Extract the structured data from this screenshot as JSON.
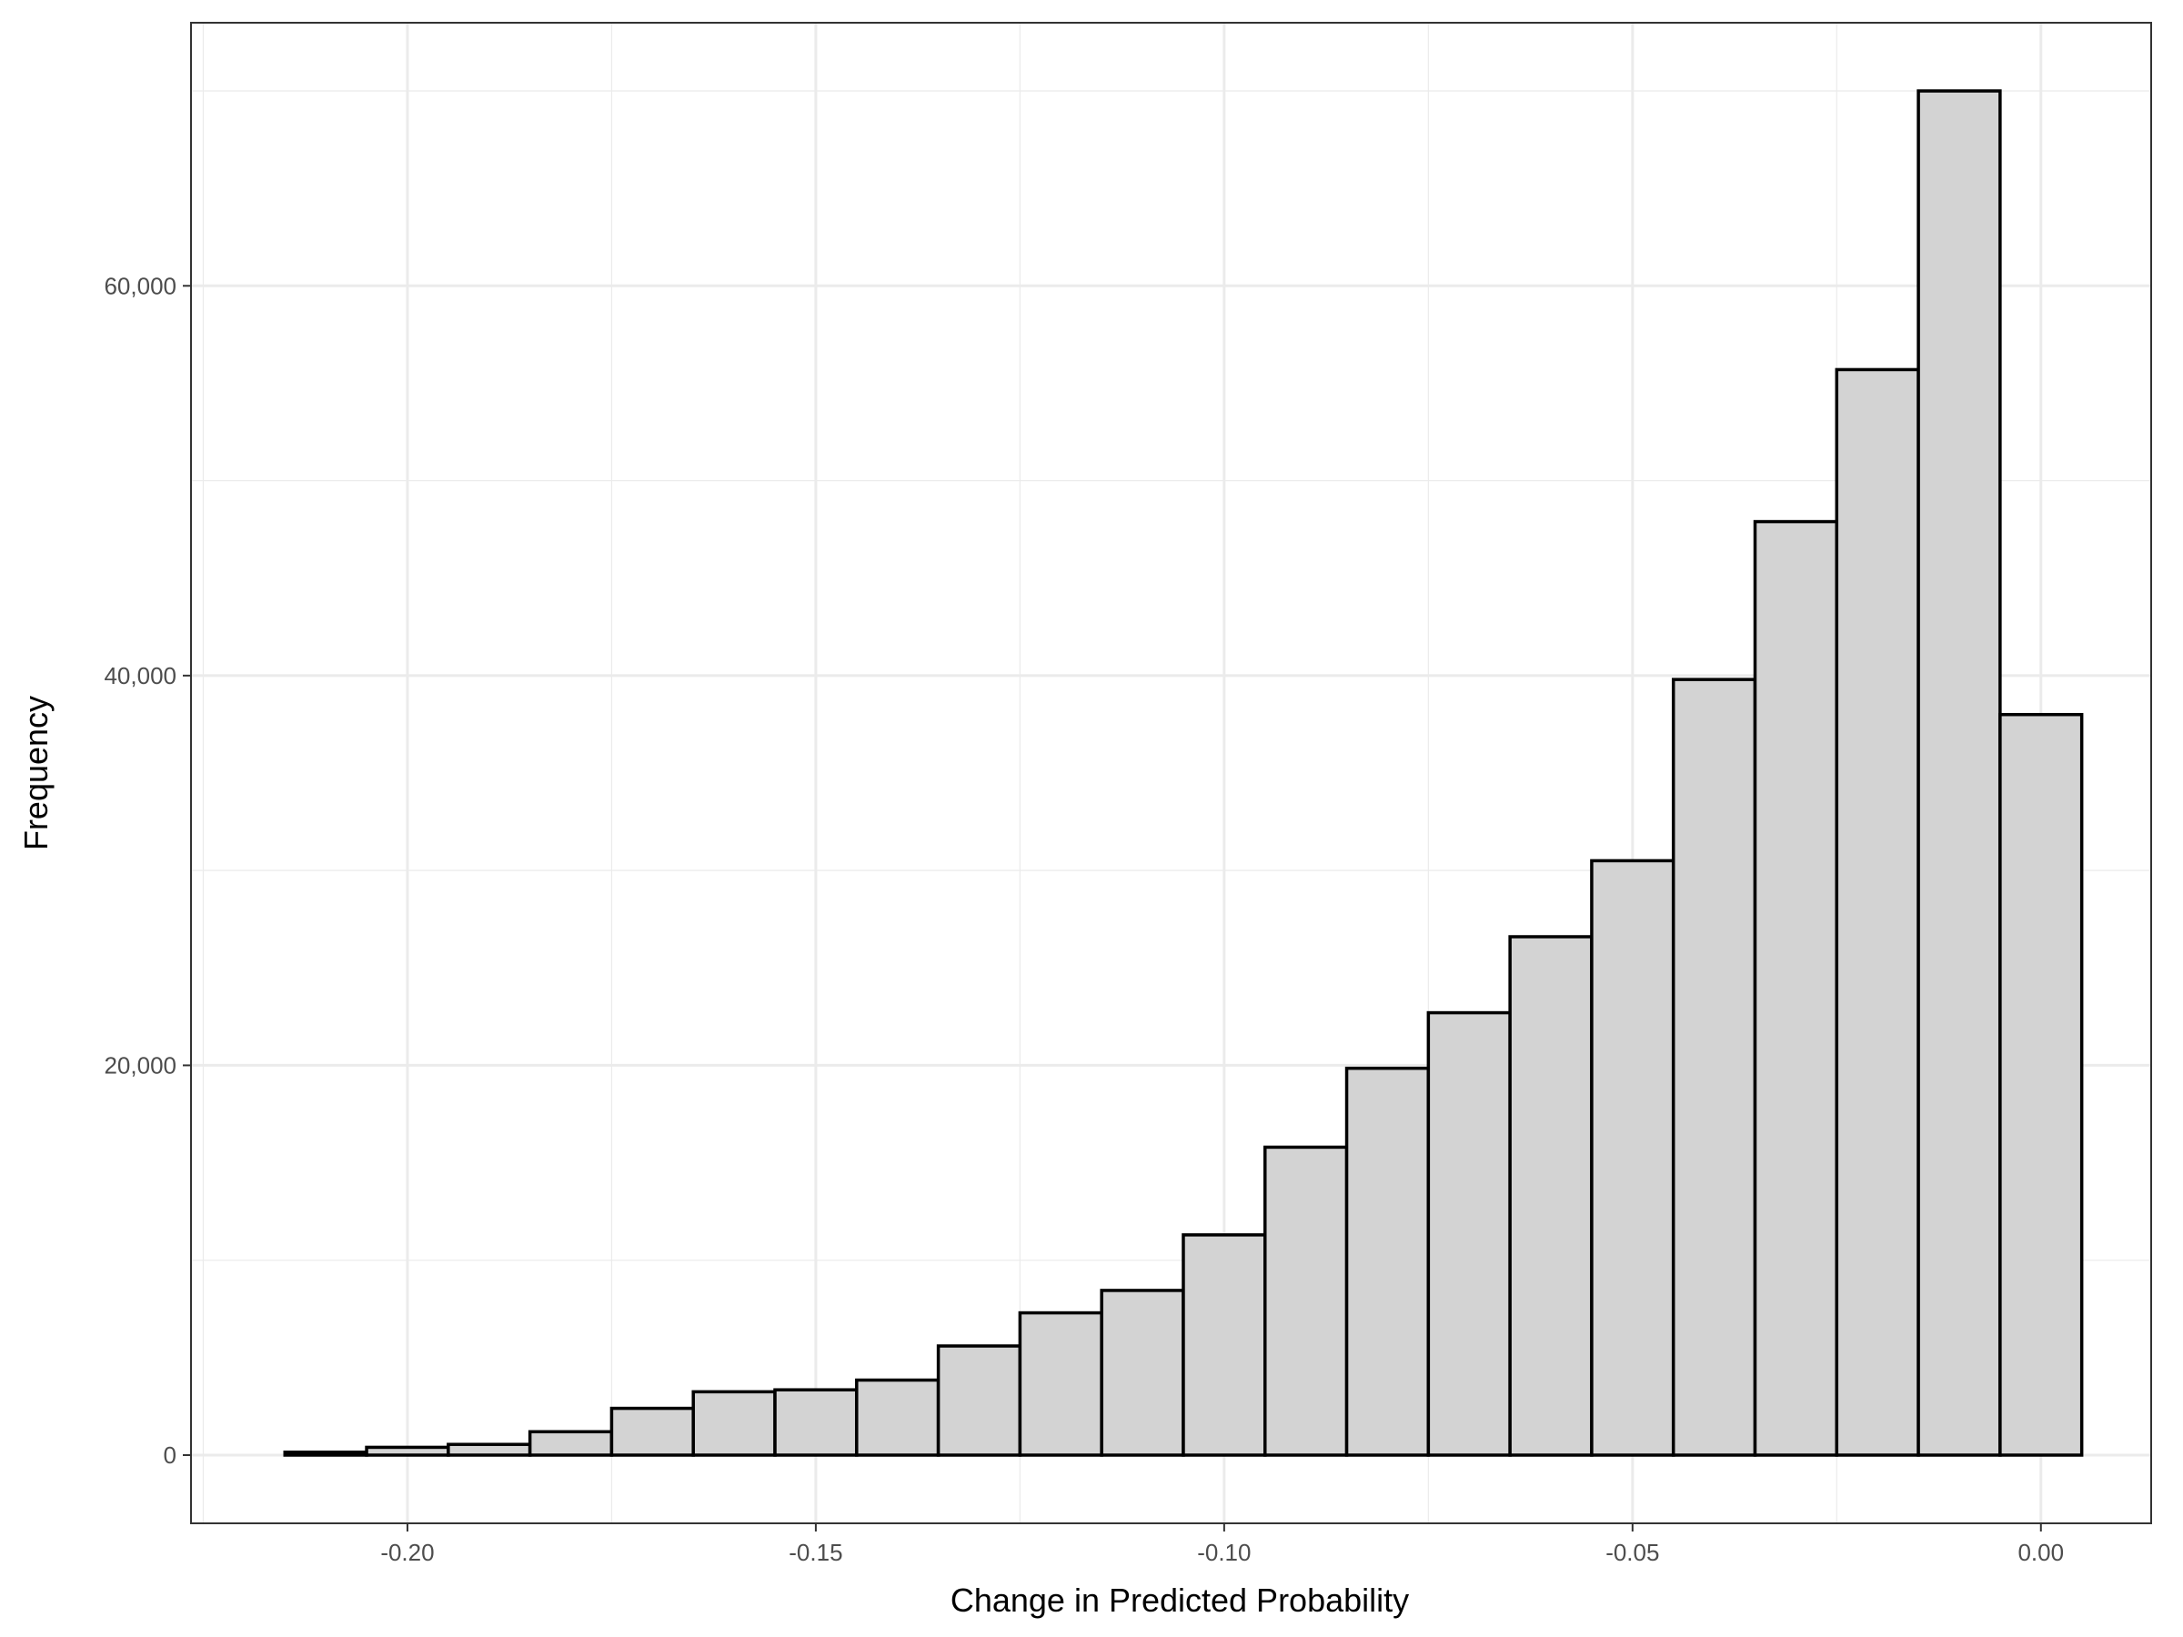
{
  "chart_data": {
    "type": "bar",
    "xlabel": "Change in Predicted Probability",
    "ylabel": "Frequency",
    "bin_width": 0.01,
    "bin_centers": [
      -0.21,
      -0.2,
      -0.19,
      -0.18,
      -0.17,
      -0.16,
      -0.15,
      -0.14,
      -0.13,
      -0.12,
      -0.11,
      -0.1,
      -0.09,
      -0.08,
      -0.07,
      -0.06,
      -0.05,
      -0.04,
      -0.03,
      -0.02,
      -0.01,
      0.0
    ],
    "values": [
      150,
      400,
      550,
      1200,
      2400,
      3250,
      3350,
      3850,
      5600,
      7300,
      8450,
      11300,
      15800,
      19850,
      22700,
      26600,
      30500,
      39800,
      47900,
      55700,
      70000,
      38000
    ],
    "xlim": [
      -0.2265,
      0.0135
    ],
    "ylim": [
      -3500,
      73500
    ],
    "x_ticks": [
      -0.2,
      -0.15,
      -0.1,
      -0.05,
      0.0
    ],
    "x_tick_labels": [
      "-0.20",
      "-0.15",
      "-0.10",
      "-0.05",
      "0.00"
    ],
    "y_ticks": [
      0,
      20000,
      40000,
      60000
    ],
    "y_tick_labels": [
      "0",
      "20,000",
      "40,000",
      "60,000"
    ],
    "grid": true,
    "bar_fill": "#d3d3d3",
    "bar_stroke": "#000000"
  }
}
